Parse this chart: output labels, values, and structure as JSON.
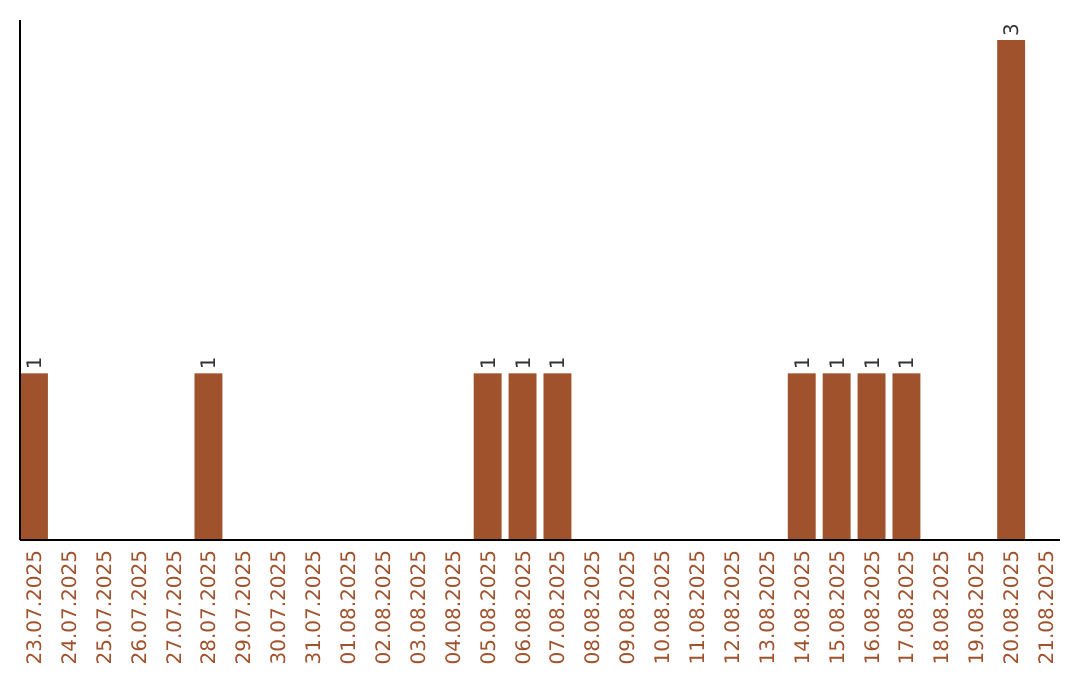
{
  "chart_data": {
    "type": "bar",
    "categories": [
      "23.07.2025",
      "24.07.2025",
      "25.07.2025",
      "26.07.2025",
      "27.07.2025",
      "28.07.2025",
      "29.07.2025",
      "30.07.2025",
      "31.07.2025",
      "01.08.2025",
      "02.08.2025",
      "03.08.2025",
      "04.08.2025",
      "05.08.2025",
      "06.08.2025",
      "07.08.2025",
      "08.08.2025",
      "09.08.2025",
      "10.08.2025",
      "11.08.2025",
      "12.08.2025",
      "13.08.2025",
      "14.08.2025",
      "15.08.2025",
      "16.08.2025",
      "17.08.2025",
      "18.08.2025",
      "19.08.2025",
      "20.08.2025",
      "21.08.2025"
    ],
    "values": [
      1,
      0,
      0,
      0,
      0,
      1,
      0,
      0,
      0,
      0,
      0,
      0,
      0,
      1,
      1,
      1,
      0,
      0,
      0,
      0,
      0,
      0,
      1,
      1,
      1,
      1,
      0,
      0,
      3,
      0
    ],
    "value_labels": [
      "1",
      null,
      null,
      null,
      null,
      "1",
      null,
      null,
      null,
      null,
      null,
      null,
      null,
      "1",
      "1",
      "1",
      null,
      null,
      null,
      null,
      null,
      null,
      "1",
      "1",
      "1",
      "1",
      null,
      null,
      "3",
      null
    ],
    "color": "#a0522d",
    "tick_labels": "x",
    "grid": false
  }
}
